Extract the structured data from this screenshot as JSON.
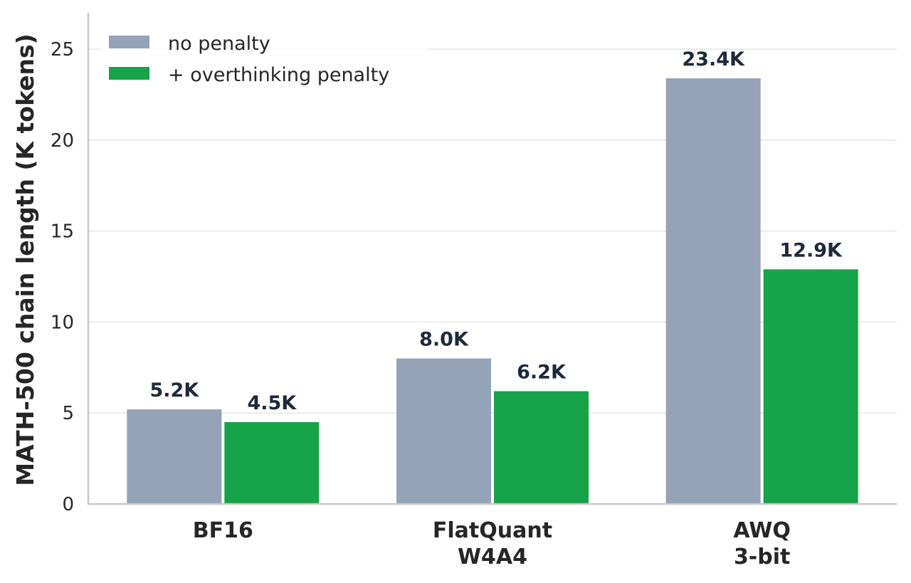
{
  "chart_data": {
    "type": "bar",
    "categories": [
      "BF16",
      "FlatQuant\nW4A4",
      "AWQ\n3-bit"
    ],
    "series": [
      {
        "name": "no penalty",
        "values": [
          5.2,
          8.0,
          23.4
        ],
        "labels": [
          "5.2K",
          "8.0K",
          "23.4K"
        ],
        "color": "#94a3b8"
      },
      {
        "name": "+ overthinking penalty",
        "values": [
          4.5,
          6.2,
          12.9
        ],
        "labels": [
          "4.5K",
          "6.2K",
          "12.9K"
        ],
        "color": "#16a34a"
      }
    ],
    "xlabel": "",
    "ylabel": "MATH-500 chain length (K tokens)",
    "ylim": [
      0,
      27
    ],
    "yticks": [
      0,
      5,
      10,
      15,
      20,
      25
    ],
    "grid": true,
    "legend": "top-left"
  }
}
